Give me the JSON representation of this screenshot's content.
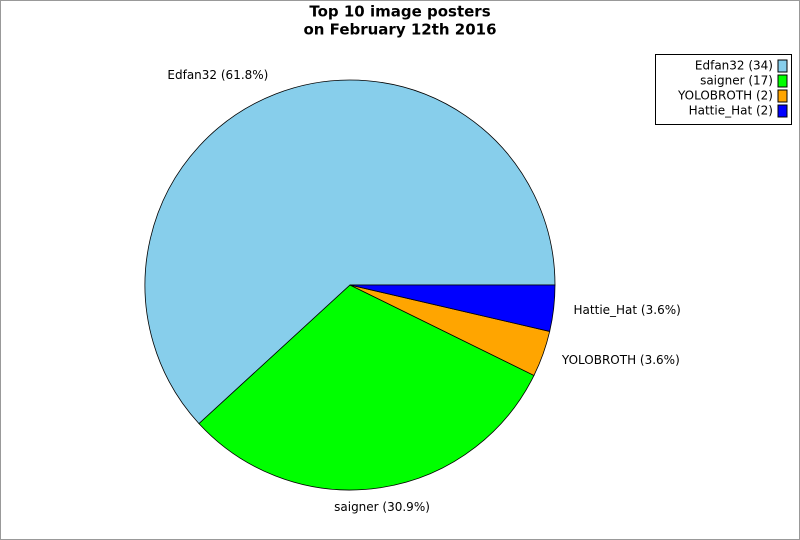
{
  "chart_data": {
    "type": "pie",
    "title": [
      "Top 10 image posters",
      "on February 12th 2016"
    ],
    "categories": [
      "Edfan32",
      "saigner",
      "YOLOBROTH",
      "Hattie_Hat"
    ],
    "values": [
      34,
      17,
      2,
      2
    ],
    "legend_labels": [
      "Edfan32 (34)",
      "saigner (17)",
      "YOLOBROTH (2)",
      "Hattie_Hat (2)"
    ],
    "percents": [
      61.8,
      30.9,
      3.6,
      3.6
    ],
    "percent_labels": [
      "Edfan32 (61.8%)",
      "saigner (30.9%)",
      "YOLOBROTH (3.6%)",
      "Hattie_Hat (3.6%)"
    ],
    "colors": [
      "#87ceeb",
      "#00ff00",
      "#ffa500",
      "#0000ff"
    ],
    "legend": "top-right"
  }
}
